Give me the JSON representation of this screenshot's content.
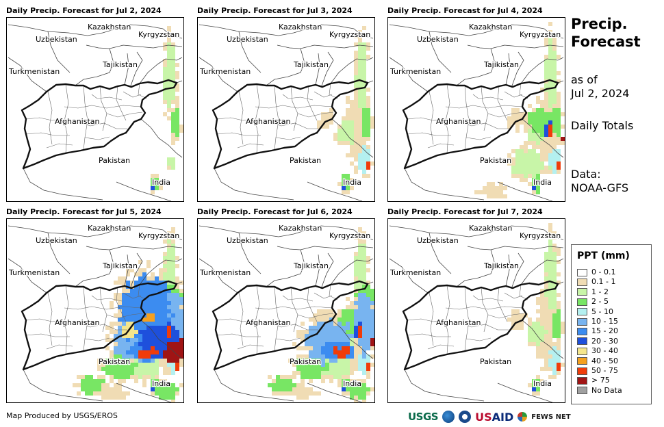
{
  "panels": [
    {
      "title": "Daily Precip. Forecast for Jul 2, 2024",
      "intensity": 0
    },
    {
      "title": "Daily Precip. Forecast for Jul 3, 2024",
      "intensity": 1
    },
    {
      "title": "Daily Precip. Forecast for Jul 4, 2024",
      "intensity": 2
    },
    {
      "title": "Daily Precip. Forecast for Jul 5, 2024",
      "intensity": 4
    },
    {
      "title": "Daily Precip. Forecast for Jul 6, 2024",
      "intensity": 3
    },
    {
      "title": "Daily Precip. Forecast for Jul 7, 2024",
      "intensity": 1
    }
  ],
  "countries": [
    "Kazakhstan",
    "Kyrgyzstan",
    "Uzbekistan",
    "Tajikistan",
    "Turkmenistan",
    "Afghanistan",
    "Pakistan",
    "India"
  ],
  "side": {
    "title_line1": "Precip.",
    "title_line2": "Forecast",
    "asof_line1": "as of",
    "asof_line2": "Jul 2, 2024",
    "totals": "Daily Totals",
    "data_line1": "Data:",
    "data_line2": "NOAA-GFS"
  },
  "legend": {
    "title": "PPT (mm)",
    "items": [
      {
        "label": "0 - 0.1",
        "color": "#ffffff"
      },
      {
        "label": "0.1 - 1",
        "color": "#f0dcb4"
      },
      {
        "label": "1 - 2",
        "color": "#c8f5a8"
      },
      {
        "label": "2 - 5",
        "color": "#78e664"
      },
      {
        "label": "5 - 10",
        "color": "#b4f0f0"
      },
      {
        "label": "10 - 15",
        "color": "#78b4f0"
      },
      {
        "label": "15 - 20",
        "color": "#3c8cf0"
      },
      {
        "label": "20 - 30",
        "color": "#1e50dc"
      },
      {
        "label": "30 - 40",
        "color": "#f5e68c"
      },
      {
        "label": "40 - 50",
        "color": "#f5a01e"
      },
      {
        "label": "50 - 75",
        "color": "#f03c0a"
      },
      {
        "label": "> 75",
        "color": "#a01414"
      },
      {
        "label": "No Data",
        "color": "#a0a0a0"
      }
    ]
  },
  "footer": {
    "credit": "Map Produced by USGS/EROS"
  },
  "logos": {
    "usgs": "USGS",
    "usaid_prefix": "US",
    "usaid_suffix": "AID",
    "fews": "FEWS NET"
  }
}
